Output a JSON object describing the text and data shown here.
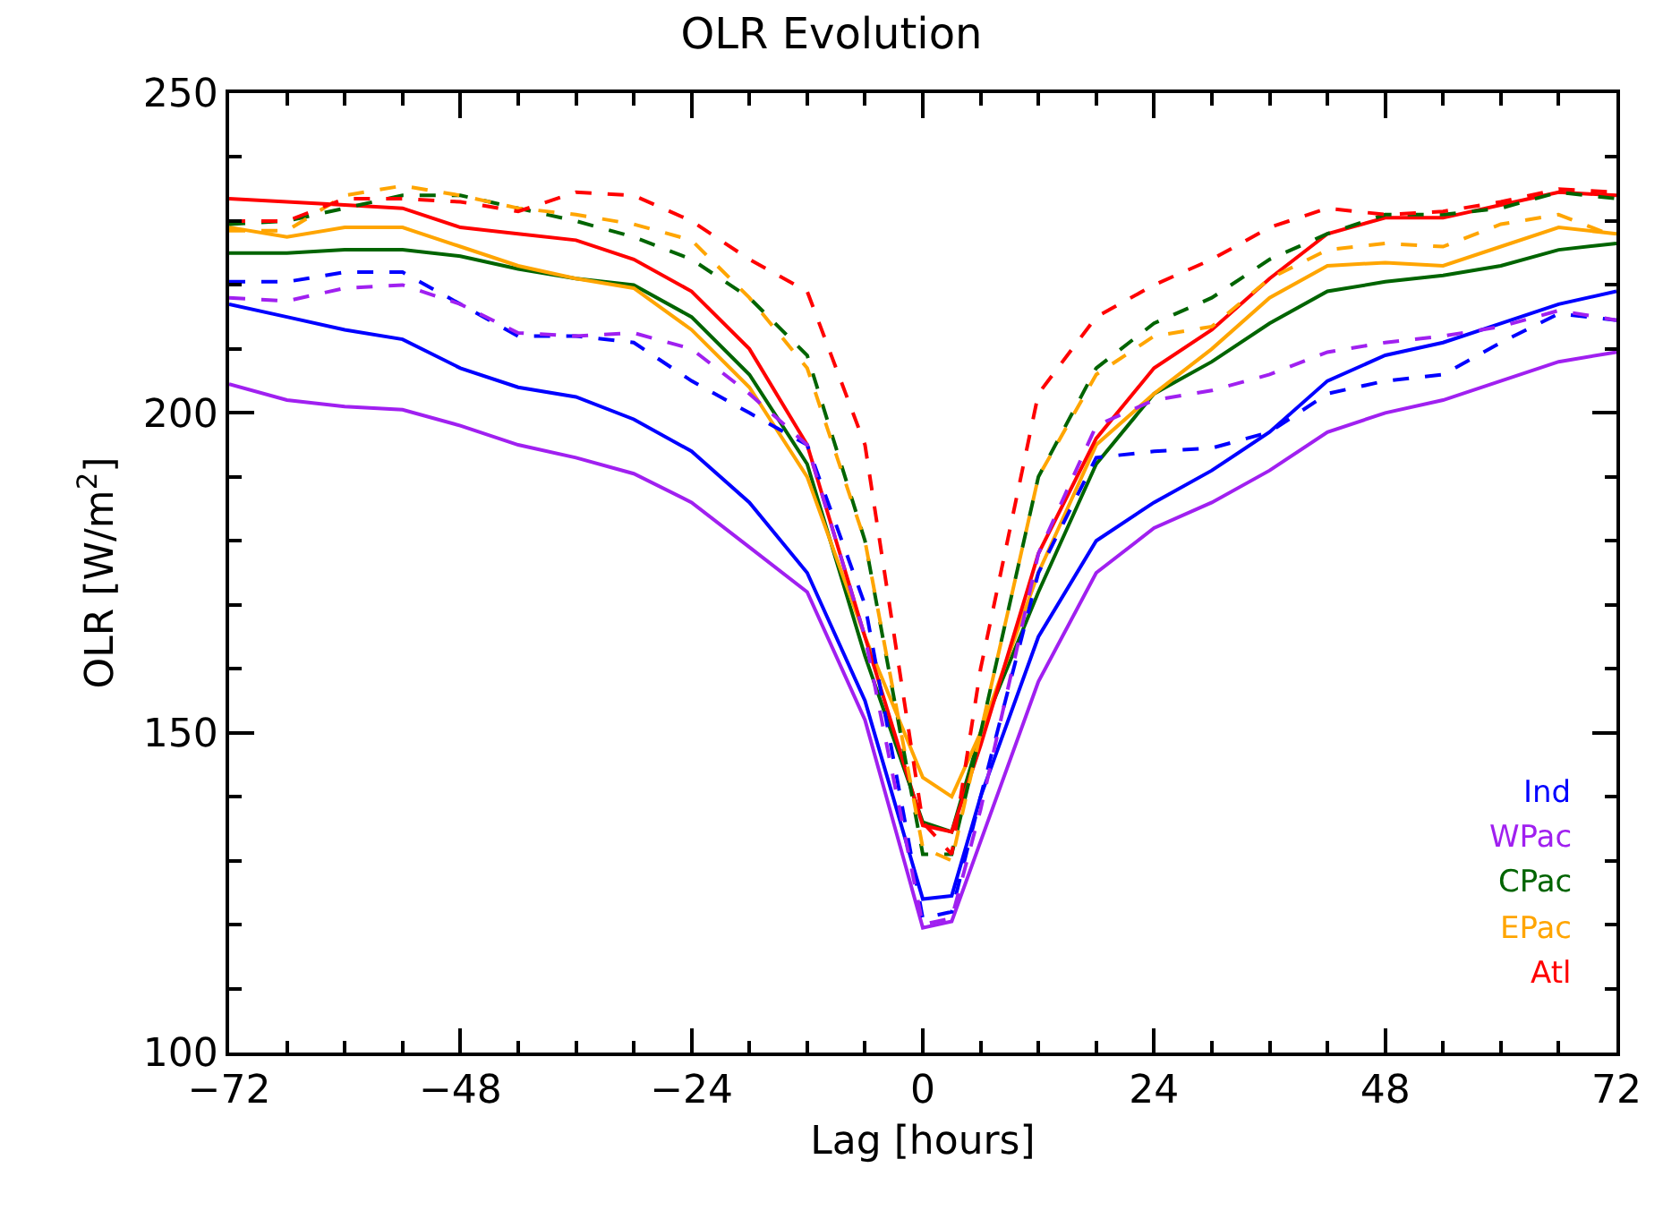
{
  "chart_data": {
    "type": "line",
    "title": "OLR Evolution",
    "xlabel": "Lag [hours]",
    "ylabel": "OLR [W/m$^{2}$]",
    "x": [
      -72,
      -66,
      -60,
      -54,
      -48,
      -42,
      -36,
      -30,
      -24,
      -18,
      -12,
      -6,
      0,
      3,
      6,
      12,
      18,
      24,
      30,
      36,
      42,
      48,
      54,
      60,
      66,
      72
    ],
    "xlim": [
      -72,
      72
    ],
    "ylim": [
      100,
      250
    ],
    "xticks": [
      -72,
      {
        "value": -66,
        "label": null
      },
      {
        "value": -60,
        "label": null
      },
      {
        "value": -54,
        "label": null
      },
      -48,
      {
        "value": -42,
        "label": null
      },
      {
        "value": -36,
        "label": null
      },
      {
        "value": -30,
        "label": null
      },
      -24,
      {
        "value": -18,
        "label": null
      },
      {
        "value": -12,
        "label": null
      },
      {
        "value": -6,
        "label": null
      },
      0,
      {
        "value": 6,
        "label": null
      },
      {
        "value": 12,
        "label": null
      },
      {
        "value": 18,
        "label": null
      },
      24,
      {
        "value": 30,
        "label": null
      },
      {
        "value": 36,
        "label": null
      },
      {
        "value": 42,
        "label": null
      },
      48,
      {
        "value": 54,
        "label": null
      },
      {
        "value": 60,
        "label": null
      },
      {
        "value": 66,
        "label": null
      },
      72
    ],
    "yticks": [
      100,
      {
        "value": 110,
        "label": null
      },
      {
        "value": 120,
        "label": null
      },
      {
        "value": 130,
        "label": null
      },
      {
        "value": 140,
        "label": null
      },
      150,
      {
        "value": 160,
        "label": null
      },
      {
        "value": 170,
        "label": null
      },
      {
        "value": 180,
        "label": null
      },
      {
        "value": 190,
        "label": null
      },
      200,
      {
        "value": 210,
        "label": null
      },
      {
        "value": 220,
        "label": null
      },
      {
        "value": 230,
        "label": null
      },
      {
        "value": 240,
        "label": null
      },
      250
    ],
    "legend": "bottom right",
    "marker": "none",
    "series": [
      {
        "name": "Ind",
        "color": "#0000ff",
        "line_style": "solid",
        "values": [
          217,
          215,
          213,
          211.5,
          207,
          204,
          202.5,
          199,
          194,
          186,
          175,
          155,
          124,
          124.5,
          140,
          165,
          180,
          186,
          191,
          197,
          205,
          209,
          211,
          214,
          217,
          219
        ]
      },
      {
        "name": "WPac",
        "color": "#a020f0",
        "line_style": "solid",
        "values": [
          204.5,
          202,
          201,
          200.5,
          198,
          195,
          193,
          190.5,
          186,
          179,
          172,
          152,
          119.5,
          120.5,
          133,
          158,
          175,
          182,
          186,
          191,
          197,
          200,
          202,
          205,
          208,
          209.5
        ]
      },
      {
        "name": "CPac",
        "color": "#006400",
        "line_style": "solid",
        "values": [
          225,
          225,
          225.5,
          225.5,
          224.5,
          222.5,
          221,
          220,
          215,
          206,
          192,
          162,
          136,
          134.5,
          150,
          172,
          192,
          203,
          208,
          214,
          219,
          220.5,
          221.5,
          223,
          225.5,
          226.5
        ]
      },
      {
        "name": "EPac",
        "color": "#ffa500",
        "line_style": "solid",
        "values": [
          229,
          227.5,
          229,
          229,
          226,
          223,
          221,
          219.5,
          213,
          204,
          190,
          165,
          143,
          140,
          150,
          175,
          195,
          203,
          210,
          218,
          223,
          223.5,
          223,
          226,
          229,
          228
        ]
      },
      {
        "name": "Atl",
        "color": "#ff0000",
        "line_style": "solid",
        "values": [
          233.5,
          233,
          232.5,
          232,
          229,
          228,
          227,
          224,
          219,
          210,
          195,
          165,
          135.5,
          134.5,
          148,
          178,
          196,
          207,
          213,
          221,
          228,
          230.5,
          230.5,
          232.5,
          234.5,
          234
        ]
      },
      {
        "color": "#0000ff",
        "line_style": "dashed",
        "values": [
          220.5,
          220.5,
          222,
          222,
          217,
          212,
          212,
          211,
          205,
          200,
          195,
          170,
          121,
          122,
          140,
          175,
          193,
          194,
          194.5,
          197,
          203,
          205,
          206,
          211,
          215.5,
          214.5
        ]
      },
      {
        "color": "#a020f0",
        "line_style": "dashed",
        "values": [
          218,
          217.5,
          219.5,
          220,
          217,
          212.5,
          212,
          212.5,
          210,
          203,
          195,
          165,
          120,
          121,
          138,
          178,
          198,
          202,
          203.5,
          206,
          209.5,
          211,
          212,
          213.5,
          216,
          214.5
        ]
      },
      {
        "color": "#006400",
        "line_style": "dashed",
        "values": [
          229.5,
          230,
          232,
          234,
          234,
          232,
          230,
          227.5,
          224,
          218,
          209,
          180,
          131,
          131,
          150,
          190,
          207,
          214,
          218,
          224,
          228,
          231,
          231,
          232,
          234.5,
          233.5
        ]
      },
      {
        "color": "#ffa500",
        "line_style": "dashed",
        "values": [
          228.5,
          228.5,
          234,
          235.5,
          234,
          232,
          231,
          229.5,
          227,
          218,
          207,
          180,
          132,
          130,
          150,
          190,
          206,
          212,
          213.5,
          221,
          225.5,
          226.5,
          226,
          229.5,
          231,
          227.5
        ]
      },
      {
        "color": "#ff0000",
        "line_style": "dashed",
        "values": [
          230,
          230,
          233.5,
          233.5,
          233,
          231.5,
          234.5,
          234,
          230,
          224,
          219,
          195,
          136,
          131,
          160,
          203,
          215,
          220,
          224,
          229,
          232,
          231,
          231.5,
          233,
          235,
          234.5
        ]
      }
    ]
  }
}
